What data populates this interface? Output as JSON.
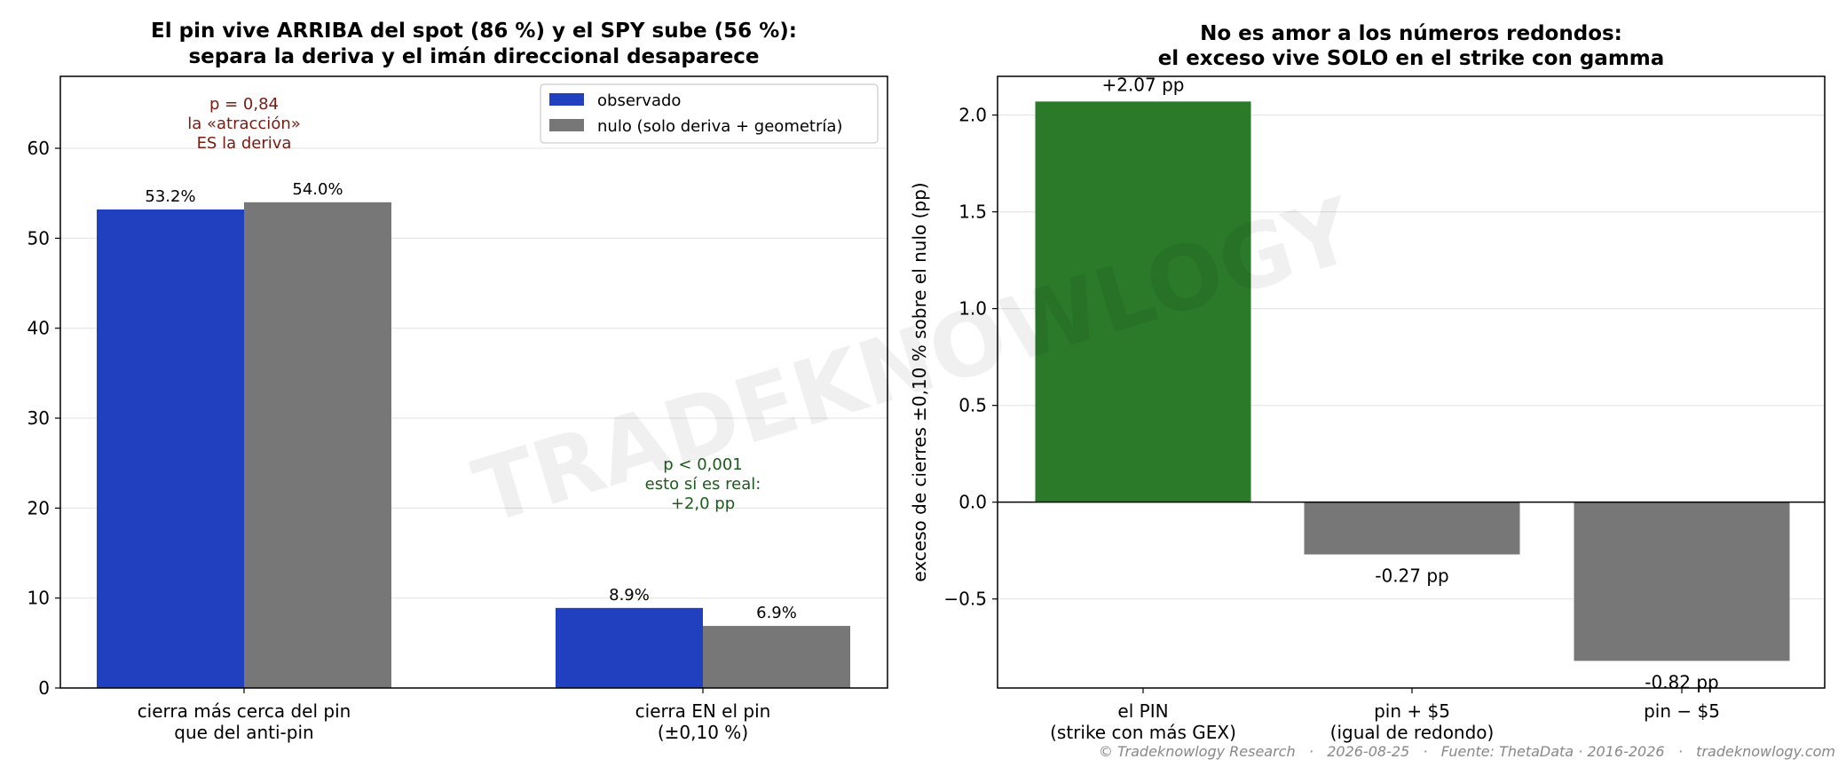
{
  "watermark": "TRADEKNOWLOGY",
  "footer": "© Tradeknowlogy Research   ·   2026-08-25   ·   Fuente: ThetaData · 2016-2026   ·   tradeknowlogy.com",
  "colors": {
    "observed": "#2140c0",
    "null": "#777777",
    "pin": "#2a7a2a",
    "grid": "#e6e6e6",
    "annotation_red": "#7a1a10",
    "annotation_green": "#1e5a1e"
  },
  "chart_data": [
    {
      "type": "bar",
      "title": [
        "El pin vive ARRIBA del spot (86 %) y el SPY sube (56 %):",
        "separa la deriva y el imán direccional desaparece"
      ],
      "categories": [
        [
          "cierra más cerca del pin",
          "que del anti-pin"
        ],
        [
          "cierra EN el pin",
          "(±0,10 %)"
        ]
      ],
      "series": [
        {
          "name": "observado",
          "values": [
            53.2,
            8.9
          ],
          "labels": [
            "53.2%",
            "8.9%"
          ]
        },
        {
          "name": "nulo (solo deriva + geometría)",
          "values": [
            54.0,
            6.9
          ],
          "labels": [
            "54.0%",
            "6.9%"
          ]
        }
      ],
      "ylim": [
        0,
        68
      ],
      "yticks": [
        0,
        10,
        20,
        30,
        40,
        50,
        60
      ],
      "grid": true,
      "legend": "top-right",
      "annotations": [
        {
          "lines": [
            "p = 0,84",
            "la «atracción»",
            "ES la deriva"
          ],
          "color": "red"
        },
        {
          "lines": [
            "p < 0,001",
            "esto sí es real:",
            "+2,0 pp"
          ],
          "color": "green"
        }
      ]
    },
    {
      "type": "bar",
      "title": [
        "No es amor a los números redondos:",
        "el exceso vive SOLO en el strike con gamma"
      ],
      "ylabel": "exceso de cierres ±0,10 % sobre el nulo (pp)",
      "categories": [
        [
          "el PIN",
          "(strike con más GEX)"
        ],
        [
          "pin + $5",
          "(igual de redondo)"
        ],
        [
          "pin − $5",
          ""
        ]
      ],
      "values": [
        2.07,
        -0.27,
        -0.82
      ],
      "labels": [
        "+2.07 pp",
        "-0.27 pp",
        "-0.82 pp"
      ],
      "ylim": [
        -0.96,
        2.2
      ],
      "yticks": [
        -0.5,
        0.0,
        0.5,
        1.0,
        1.5,
        2.0
      ],
      "ytick_labels": [
        "−0.5",
        "0.0",
        "0.5",
        "1.0",
        "1.5",
        "2.0"
      ],
      "grid": true,
      "zero_line": true
    }
  ]
}
